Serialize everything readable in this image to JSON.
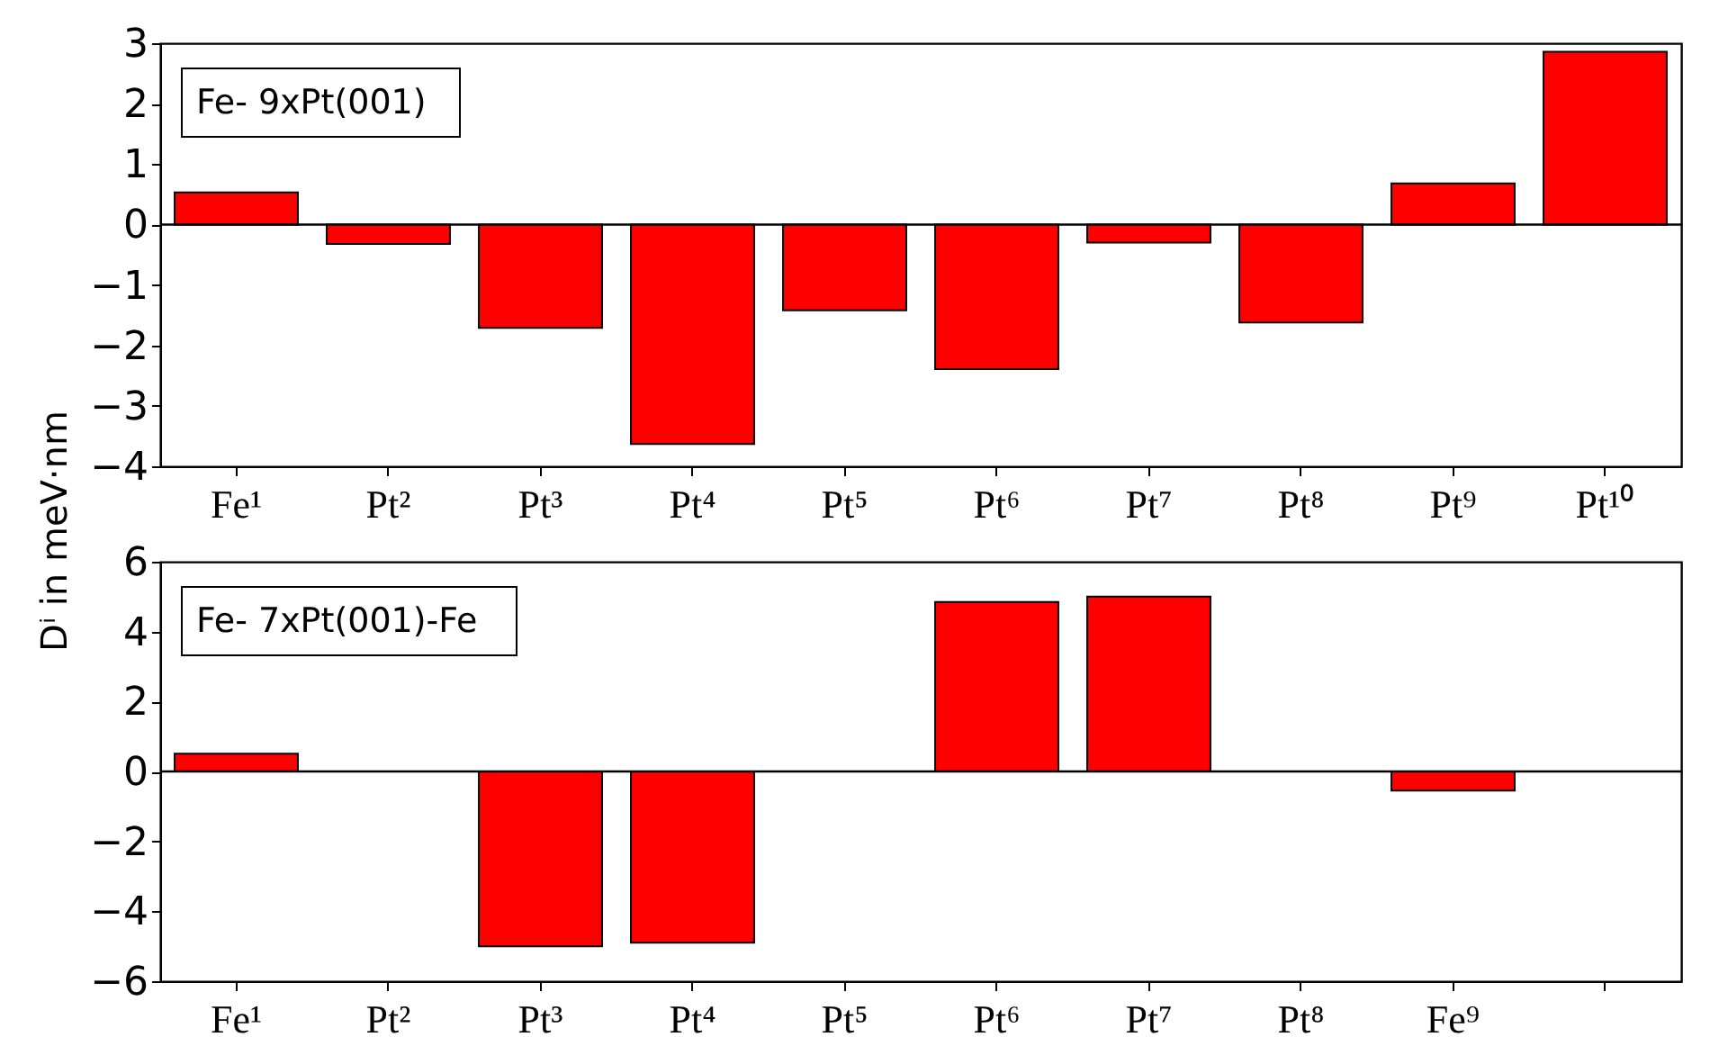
{
  "chart_data": [
    {
      "type": "bar",
      "ylabel": "Dⁱ in meV·nm",
      "annotations": [
        "Fe- 9xPt(001)"
      ],
      "categories": [
        "Fe¹",
        "Pt²",
        "Pt³",
        "Pt⁴",
        "Pt⁵",
        "Pt⁶",
        "Pt⁷",
        "Pt⁸",
        "Pt⁹",
        "Pt¹⁰"
      ],
      "series": [
        {
          "color": "#ff0000",
          "values": [
            0.53,
            -0.32,
            -1.71,
            -3.63,
            -1.42,
            -2.39,
            -0.3,
            -1.62,
            0.68,
            2.86
          ]
        }
      ],
      "ylim": [
        -4,
        3
      ],
      "yticks": [
        -4,
        -3,
        -2,
        -1,
        0,
        1,
        2,
        3
      ],
      "grid": false,
      "ref_lines": [
        {
          "axis": "y",
          "value": 0,
          "color": "#000000"
        }
      ]
    },
    {
      "type": "bar",
      "annotations": [
        "Fe- 7xPt(001)-Fe"
      ],
      "categories": [
        "Fe¹",
        "Pt²",
        "Pt³",
        "Pt⁴",
        "Pt⁵",
        "Pt⁶",
        "Pt⁷",
        "Pt⁸",
        "Fe⁹",
        null
      ],
      "series": [
        {
          "color": "#ff0000",
          "values": [
            0.51,
            0,
            -5.0,
            -4.9,
            0,
            4.85,
            5.0,
            0,
            -0.55,
            null
          ]
        }
      ],
      "ylim": [
        -6,
        6
      ],
      "yticks": [
        -6,
        -4,
        -2,
        0,
        2,
        4,
        6
      ],
      "grid": false,
      "ref_lines": [
        {
          "axis": "y",
          "value": 0,
          "color": "#000000"
        }
      ]
    }
  ]
}
